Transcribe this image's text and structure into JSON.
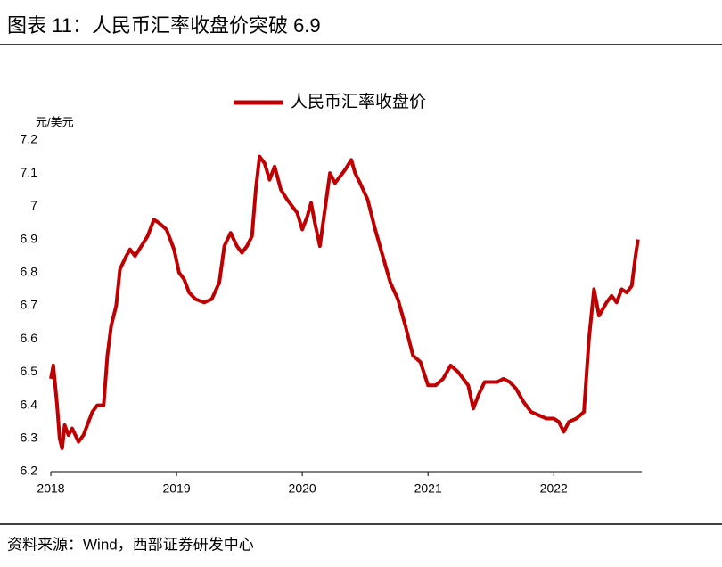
{
  "title": "图表 11：人民币汇率收盘价突破 6.9",
  "source": "资料来源：Wind，西部证券研发中心",
  "chart_data": {
    "type": "line",
    "y_label": "元/美元",
    "x": [
      2018.0,
      2018.02,
      2018.05,
      2018.07,
      2018.09,
      2018.11,
      2018.14,
      2018.17,
      2018.22,
      2018.26,
      2018.3,
      2018.33,
      2018.37,
      2018.42,
      2018.45,
      2018.48,
      2018.52,
      2018.55,
      2018.6,
      2018.63,
      2018.67,
      2018.72,
      2018.77,
      2018.82,
      2018.86,
      2018.92,
      2018.98,
      2019.02,
      2019.06,
      2019.1,
      2019.15,
      2019.22,
      2019.28,
      2019.34,
      2019.38,
      2019.43,
      2019.48,
      2019.52,
      2019.56,
      2019.6,
      2019.63,
      2019.66,
      2019.7,
      2019.74,
      2019.78,
      2019.83,
      2019.88,
      2019.92,
      2019.96,
      2020.0,
      2020.04,
      2020.07,
      2020.1,
      2020.14,
      2020.18,
      2020.22,
      2020.26,
      2020.3,
      2020.34,
      2020.39,
      2020.42,
      2020.46,
      2020.52,
      2020.58,
      2020.64,
      2020.7,
      2020.76,
      2020.82,
      2020.88,
      2020.94,
      2021.0,
      2021.06,
      2021.12,
      2021.18,
      2021.24,
      2021.28,
      2021.32,
      2021.36,
      2021.4,
      2021.45,
      2021.5,
      2021.55,
      2021.6,
      2021.65,
      2021.7,
      2021.76,
      2021.82,
      2021.88,
      2021.94,
      2022.0,
      2022.04,
      2022.08,
      2022.12,
      2022.18,
      2022.24,
      2022.28,
      2022.32,
      2022.36,
      2022.42,
      2022.46,
      2022.5,
      2022.54,
      2022.58,
      2022.62,
      2022.65,
      2022.67
    ],
    "series": [
      {
        "name": "人民币汇率收盘价",
        "color": "#c00000",
        "values": [
          6.48,
          6.52,
          6.4,
          6.3,
          6.27,
          6.34,
          6.31,
          6.33,
          6.29,
          6.31,
          6.35,
          6.38,
          6.4,
          6.4,
          6.55,
          6.64,
          6.7,
          6.81,
          6.85,
          6.87,
          6.85,
          6.88,
          6.91,
          6.96,
          6.95,
          6.93,
          6.87,
          6.8,
          6.78,
          6.74,
          6.72,
          6.71,
          6.72,
          6.77,
          6.88,
          6.92,
          6.88,
          6.86,
          6.88,
          6.91,
          7.05,
          7.15,
          7.13,
          7.08,
          7.12,
          7.05,
          7.02,
          7.0,
          6.98,
          6.93,
          6.97,
          7.01,
          6.95,
          6.88,
          6.99,
          7.1,
          7.07,
          7.09,
          7.11,
          7.14,
          7.1,
          7.07,
          7.02,
          6.93,
          6.85,
          6.77,
          6.72,
          6.64,
          6.55,
          6.53,
          6.46,
          6.46,
          6.48,
          6.52,
          6.5,
          6.48,
          6.46,
          6.39,
          6.43,
          6.47,
          6.47,
          6.47,
          6.48,
          6.47,
          6.45,
          6.41,
          6.38,
          6.37,
          6.36,
          6.36,
          6.35,
          6.32,
          6.35,
          6.36,
          6.38,
          6.6,
          6.75,
          6.67,
          6.71,
          6.73,
          6.71,
          6.75,
          6.74,
          6.76,
          6.85,
          6.9
        ]
      }
    ],
    "xlim": [
      2018,
      2022.7
    ],
    "xticks": [
      2018,
      2019,
      2020,
      2021,
      2022
    ],
    "ylim": [
      6.2,
      7.2
    ],
    "yticks": [
      6.2,
      6.3,
      6.4,
      6.5,
      6.6,
      6.7,
      6.8,
      6.9,
      7,
      7.1,
      7.2
    ],
    "legend": "top"
  }
}
